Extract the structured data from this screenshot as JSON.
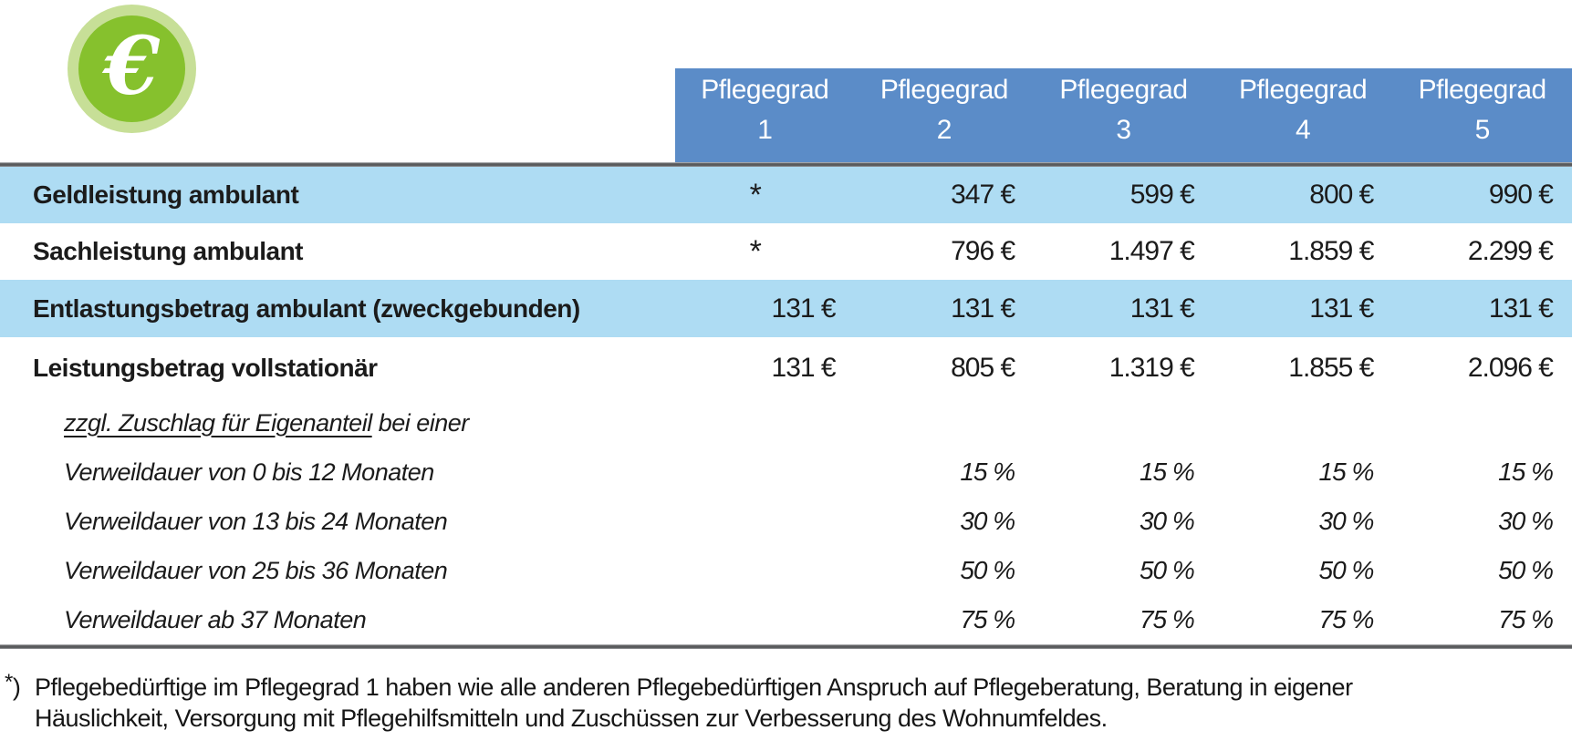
{
  "icon": {
    "name": "euro-icon",
    "glyph": "€",
    "ring_color": "#c7df97",
    "inner_color": "#86c12d",
    "glyph_color": "#ffffff"
  },
  "colors": {
    "header_bg": "#5b8cc8",
    "header_text": "#ffffff",
    "row_highlight": "#aedcf3",
    "rule_gray": "#595a5c",
    "body_text": "#1b1b1b"
  },
  "table": {
    "header_columns": [
      {
        "title": "Pflegegrad",
        "number": "1"
      },
      {
        "title": "Pflegegrad",
        "number": "2"
      },
      {
        "title": "Pflegegrad",
        "number": "3"
      },
      {
        "title": "Pflegegrad",
        "number": "4"
      },
      {
        "title": "Pflegegrad",
        "number": "5"
      }
    ],
    "rows": [
      {
        "label": "Geldleistung ambulant",
        "values": [
          "*",
          "347 €",
          "599 €",
          "800 €",
          "990 €"
        ]
      },
      {
        "label": "Sachleistung ambulant",
        "values": [
          "*",
          "796 €",
          "1.497 €",
          "1.859 €",
          "2.299 €"
        ]
      },
      {
        "label": "Entlastungsbetrag ambulant (zweckgebunden)",
        "values": [
          "131 €",
          "131 €",
          "131 €",
          "131 €",
          "131 €"
        ]
      },
      {
        "label": "Leistungsbetrag vollstationär",
        "values": [
          "131 €",
          "805 €",
          "1.319 €",
          "1.855 €",
          "2.096 €"
        ]
      },
      {
        "label_underlined": "zzgl. Zuschlag für Eigenanteil",
        "label_rest": " bei einer",
        "values": [
          "",
          "",
          "",
          "",
          ""
        ]
      },
      {
        "label": "Verweildauer von 0 bis 12 Monaten",
        "values": [
          "",
          "15 %",
          "15 %",
          "15 %",
          "15 %"
        ]
      },
      {
        "label": "Verweildauer von 13 bis 24 Monaten",
        "values": [
          "",
          "30 %",
          "30 %",
          "30 %",
          "30 %"
        ]
      },
      {
        "label": "Verweildauer von 25 bis 36 Monaten",
        "values": [
          "",
          "50 %",
          "50 %",
          "50 %",
          "50 %"
        ]
      },
      {
        "label": "Verweildauer ab 37 Monaten",
        "values": [
          "",
          "75 %",
          "75 %",
          "75 %",
          "75 %"
        ]
      }
    ]
  },
  "footnote": {
    "marker_star": "*",
    "marker_paren": ")",
    "lines": [
      "Pflegebedürftige im Pflegegrad 1 haben wie alle anderen Pflegebedürftigen Anspruch auf Pflegeberatung, Beratung in eigener",
      "Häuslichkeit, Versorgung mit Pflegehilfsmitteln und Zuschüssen zur Verbesserung des Wohnumfeldes."
    ]
  }
}
